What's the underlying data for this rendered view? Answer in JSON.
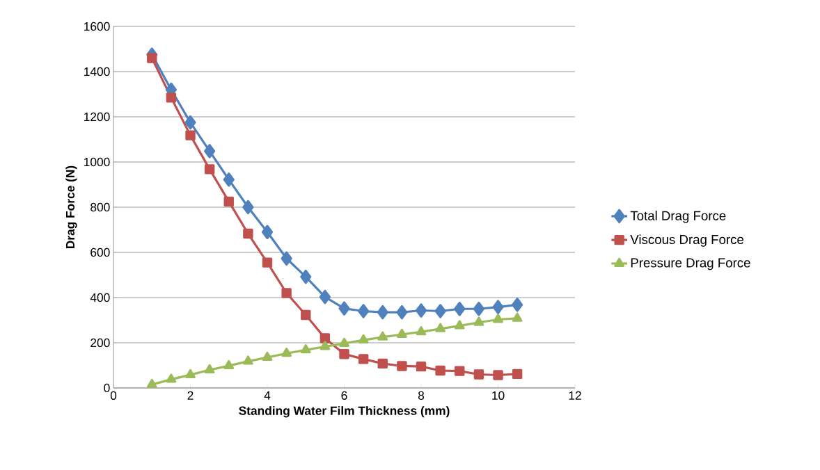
{
  "chart_data": {
    "type": "line",
    "xlabel": "Standing Water Film Thickness (mm)",
    "ylabel": "Drag Force (N)",
    "x": [
      1,
      1.5,
      2,
      2.5,
      3,
      3.5,
      4,
      4.5,
      5,
      5.5,
      6,
      6.5,
      7,
      7.5,
      8,
      8.5,
      9,
      9.5,
      10,
      10.5
    ],
    "series": [
      {
        "name": "Total Drag Force",
        "color": "#4f81bd",
        "marker": "diamond",
        "values": [
          1475,
          1320,
          1175,
          1048,
          922,
          800,
          690,
          573,
          492,
          403,
          352,
          340,
          335,
          335,
          343,
          340,
          350,
          350,
          358,
          368
        ]
      },
      {
        "name": "Viscous Drag Force",
        "color": "#c0504d",
        "marker": "square",
        "values": [
          1460,
          1285,
          1118,
          968,
          825,
          683,
          555,
          420,
          323,
          220,
          150,
          128,
          108,
          97,
          95,
          77,
          75,
          60,
          57,
          62
        ]
      },
      {
        "name": "Pressure Drag Force",
        "color": "#9bbb59",
        "marker": "triangle",
        "values": [
          15,
          38,
          58,
          80,
          98,
          118,
          135,
          153,
          168,
          183,
          197,
          212,
          225,
          237,
          248,
          262,
          275,
          290,
          303,
          308
        ]
      }
    ],
    "xlim": [
      0,
      12
    ],
    "xticks": [
      0,
      2,
      4,
      6,
      8,
      10,
      12
    ],
    "ylim": [
      0,
      1600
    ],
    "yticks": [
      0,
      200,
      400,
      600,
      800,
      1000,
      1200,
      1400,
      1600
    ],
    "grid": "y",
    "legend": "right",
    "line_style": "solid"
  }
}
